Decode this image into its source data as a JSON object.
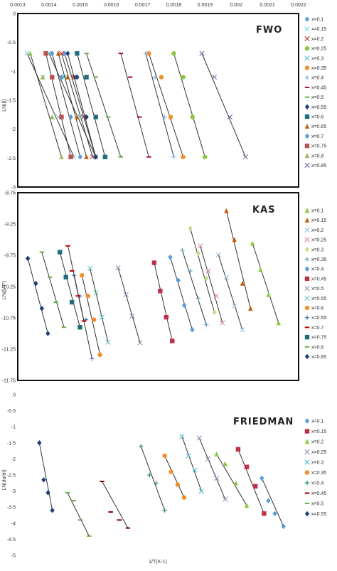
{
  "palette": {
    "0.1": "#5b9bd5",
    "0.15": "#c0392b",
    "0.2": "#8dc63f",
    "0.25": "#9b8bb4",
    "0.3": "#4bc0c8",
    "0.35": "#f28e2b",
    "0.4": "#7da7d9",
    "0.45": "#a50e30",
    "0.5": "#70ad47",
    "0.55": "#1f3f7a",
    "0.6": "#1f6d78",
    "0.65": "#c55a11",
    "0.7": "#5b9bd5",
    "0.75": "#c0504d",
    "0.8": "#9bbb59",
    "0.85": "#8064a2"
  },
  "chart_data": [
    {
      "type": "scatter",
      "title": "FWO",
      "ylabel": "LN(β)",
      "xlabel": "",
      "xlim": [
        0.0013,
        0.0022
      ],
      "ylim": [
        -3,
        0
      ],
      "x_ticks": [
        "0.0013",
        "0.0014",
        "0.0015",
        "0.0016",
        "0.0017",
        "0.0018",
        "0.0019",
        "0.002",
        "0.0021",
        "0.0022"
      ],
      "y_ticks": [
        "0",
        "-0.5",
        "-1",
        "-1.5",
        "-2",
        "-2.5",
        "-3"
      ],
      "x_ticks_position": "top",
      "grid": false,
      "legend": "right",
      "series": [
        {
          "name": "x=0.1",
          "marker": "diamond",
          "color": "#5b9bd5",
          "x": [
            0.00145,
            0.00148,
            0.00152,
            0.00155
          ],
          "y": [
            -0.69,
            -1.1,
            -1.79,
            -2.48
          ]
        },
        {
          "name": "x=0.15",
          "marker": "x",
          "color": "#7fd6d6",
          "x": [
            0.00133,
            0.00138,
            0.00143,
            0.00148
          ],
          "y": [
            -0.69,
            -1.1,
            -1.79,
            -2.48
          ]
        },
        {
          "name": "x=0.2",
          "marker": "x",
          "color": "#c0392b",
          "x": [
            0.00144,
            0.00148,
            0.00151,
            0.00154
          ],
          "y": [
            -0.69,
            -1.1,
            -1.79,
            -2.48
          ]
        },
        {
          "name": "x=0.25",
          "marker": "circle",
          "color": "#8dc63f",
          "x": [
            0.0018,
            0.00183,
            0.00186,
            0.0019
          ],
          "y": [
            -0.69,
            -1.1,
            -1.79,
            -2.48
          ]
        },
        {
          "name": "x=0.3",
          "marker": "x",
          "color": "#4bc0c8",
          "x": [
            0.0014,
            0.00145,
            0.0015,
            0.00155
          ],
          "y": [
            -0.69,
            -1.1,
            -1.79,
            -2.48
          ]
        },
        {
          "name": "x=0.35",
          "marker": "circle",
          "color": "#f28e2b",
          "x": [
            0.00172,
            0.00176,
            0.00179,
            0.00183
          ],
          "y": [
            -0.69,
            -1.1,
            -1.79,
            -2.48
          ]
        },
        {
          "name": "x=0.4",
          "marker": "plus",
          "color": "#7da7d9",
          "x": [
            0.00171,
            0.00174,
            0.00177,
            0.0018
          ],
          "y": [
            -0.69,
            -1.1,
            -1.79,
            -2.48
          ]
        },
        {
          "name": "x=0.45",
          "marker": "dash",
          "color": "#a50e30",
          "x": [
            0.00163,
            0.00166,
            0.00169,
            0.00172
          ],
          "y": [
            -0.69,
            -1.1,
            -1.79,
            -2.48
          ]
        },
        {
          "name": "x=0.5",
          "marker": "dash",
          "color": "#70ad47",
          "x": [
            0.00152,
            0.00155,
            0.00159,
            0.00163
          ],
          "y": [
            -0.69,
            -1.1,
            -1.79,
            -2.48
          ]
        },
        {
          "name": "x=0.55",
          "marker": "diamond",
          "color": "#1f3f7a",
          "x": [
            0.00146,
            0.00149,
            0.00152,
            0.00155
          ],
          "y": [
            -0.69,
            -1.1,
            -1.79,
            -2.48
          ]
        },
        {
          "name": "x=0.6",
          "marker": "square",
          "color": "#1f6d78",
          "x": [
            0.00149,
            0.00152,
            0.00155,
            0.00158
          ],
          "y": [
            -0.69,
            -1.1,
            -1.79,
            -2.48
          ]
        },
        {
          "name": "x=0.65",
          "marker": "triangle",
          "color": "#c55a11",
          "x": [
            0.00143,
            0.00146,
            0.00149,
            0.00152
          ],
          "y": [
            -0.69,
            -1.1,
            -1.79,
            -2.48
          ]
        },
        {
          "name": "x=0.7",
          "marker": "diamond",
          "color": "#5b9bd5",
          "x": [
            0.00141,
            0.00144,
            0.00147,
            0.0015
          ],
          "y": [
            -0.69,
            -1.1,
            -1.79,
            -2.48
          ]
        },
        {
          "name": "x=0.75",
          "marker": "square",
          "color": "#c0504d",
          "x": [
            0.00139,
            0.00141,
            0.00144,
            0.00147
          ],
          "y": [
            -0.69,
            -1.1,
            -1.79,
            -2.48
          ]
        },
        {
          "name": "x=0.8",
          "marker": "triangle",
          "color": "#9bbb59",
          "x": [
            0.00134,
            0.00138,
            0.00141,
            0.00144
          ],
          "y": [
            -0.69,
            -1.1,
            -1.79,
            -2.48
          ]
        },
        {
          "name": "x=0.85",
          "marker": "x",
          "color": "#8064a2",
          "x": [
            0.00189,
            0.00193,
            0.00198,
            0.00203
          ],
          "y": [
            -0.69,
            -1.1,
            -1.79,
            -2.48
          ]
        }
      ]
    },
    {
      "type": "scatter",
      "title": "KAS",
      "ylabel": "LN(β/T²)",
      "xlabel": "",
      "ylim": [
        -11.75,
        -8.75
      ],
      "y_ticks": [
        "-8.75",
        "-9.25",
        "-9.75",
        "-10.25",
        "-10.75",
        "-11.25",
        "-11.75"
      ],
      "grid": false,
      "legend": "right",
      "series": [
        {
          "name": "x=0.1",
          "marker": "triangle",
          "color": "#8dc63f",
          "x": [
            0.00192,
            0.00196,
            0.002,
            0.00205
          ],
          "y": [
            -9.56,
            -9.98,
            -10.38,
            -10.83
          ]
        },
        {
          "name": "x=0.15",
          "marker": "triangle",
          "color": "#c55a11",
          "x": [
            0.00179,
            0.00183,
            0.00187,
            0.00191
          ],
          "y": [
            -9.04,
            -9.5,
            -10.2,
            -10.6
          ]
        },
        {
          "name": "x=0.2",
          "marker": "x",
          "color": "#9bbdd8",
          "x": [
            0.00175,
            0.00179,
            0.00183,
            0.00187
          ],
          "y": [
            -9.74,
            -10.1,
            -10.56,
            -10.94
          ]
        },
        {
          "name": "x=0.25",
          "marker": "x",
          "color": "#d487b4",
          "x": [
            0.00166,
            0.0017,
            0.00174,
            0.00177
          ],
          "y": [
            -9.6,
            -10.0,
            -10.4,
            -10.83
          ]
        },
        {
          "name": "x=0.3",
          "marker": "diamond",
          "color": "#c5df8d",
          "x": [
            0.00161,
            0.00165,
            0.00169,
            0.00173
          ],
          "y": [
            -9.32,
            -9.72,
            -10.12,
            -10.66
          ]
        },
        {
          "name": "x=0.35",
          "marker": "plus",
          "color": "#6fa0b8",
          "x": [
            0.00157,
            0.00161,
            0.00165,
            0.00169
          ],
          "y": [
            -9.67,
            -10.0,
            -10.44,
            -10.86
          ]
        },
        {
          "name": "x=0.4",
          "marker": "diamond",
          "color": "#5b9bd5",
          "x": [
            0.00151,
            0.00155,
            0.00158,
            0.00162
          ],
          "y": [
            -9.78,
            -10.15,
            -10.55,
            -10.94
          ]
        },
        {
          "name": "x=0.45",
          "marker": "square",
          "color": "#c0304d",
          "x": [
            0.00143,
            0.00146,
            0.00149,
            0.00152
          ],
          "y": [
            -9.87,
            -10.32,
            -10.74,
            -11.12
          ]
        },
        {
          "name": "x=0.5",
          "marker": "x",
          "color": "#9b8bb4",
          "x": [
            0.00125,
            0.00129,
            0.00132,
            0.00136
          ],
          "y": [
            -9.95,
            -10.38,
            -10.72,
            -11.15
          ]
        },
        {
          "name": "x=0.55",
          "marker": "x",
          "color": "#66c2c8",
          "x": [
            0.00111,
            0.00114,
            0.00117,
            0.0012
          ],
          "y": [
            -9.96,
            -10.35,
            -10.74,
            -11.14
          ]
        },
        {
          "name": "x=0.6",
          "marker": "circle",
          "color": "#f28e2b",
          "x": [
            0.00107,
            0.0011,
            0.00113,
            0.00116
          ],
          "y": [
            -10.07,
            -10.4,
            -10.78,
            -11.34
          ]
        },
        {
          "name": "x=0.65",
          "marker": "plus",
          "color": "#4e6fa6",
          "x": [
            0.00103,
            0.00106,
            0.00109,
            0.00112
          ],
          "y": [
            -10.07,
            -10.4,
            -10.78,
            -11.4
          ]
        },
        {
          "name": "x=0.7",
          "marker": "dash",
          "color": "#c00000",
          "x": [
            0.001,
            0.00102,
            0.00105,
            0.00108
          ],
          "y": [
            -9.6,
            -10.0,
            -10.4,
            -10.8
          ]
        },
        {
          "name": "x=0.75",
          "marker": "square",
          "color": "#1f6d78",
          "x": [
            0.00096,
            0.00099,
            0.00102,
            0.00106
          ],
          "y": [
            -9.7,
            -10.1,
            -10.5,
            -10.9
          ]
        },
        {
          "name": "x=0.8",
          "marker": "dash",
          "color": "#70ad47",
          "x": [
            0.00087,
            0.00091,
            0.00094,
            0.00098
          ],
          "y": [
            -9.7,
            -10.1,
            -10.5,
            -10.9
          ]
        },
        {
          "name": "x=0.85",
          "marker": "diamond",
          "color": "#1f3f7a",
          "x": [
            0.0008,
            0.00084,
            0.00087,
            0.0009
          ],
          "y": [
            -9.8,
            -10.2,
            -10.6,
            -11.0
          ]
        }
      ]
    },
    {
      "type": "scatter",
      "title": "FRIEDMAN",
      "ylabel": "LN(dα/dt)",
      "xlabel": "1/T(K-1)",
      "ylim": [
        -5,
        0
      ],
      "y_ticks": [
        "0",
        "-0.5",
        "-1",
        "-1.5",
        "-2",
        "-2.5",
        "-3",
        "-3.5",
        "-4",
        "-4.5",
        "-5"
      ],
      "grid": false,
      "legend": "right",
      "series": [
        {
          "name": "x=0.1",
          "marker": "diamond",
          "color": "#5b9bd5",
          "x": [
            0.00198,
            0.00201,
            0.00204,
            0.00208
          ],
          "y": [
            -2.6,
            -3.3,
            -3.7,
            -4.1
          ]
        },
        {
          "name": "x=0.15",
          "marker": "square",
          "color": "#c0304d",
          "x": [
            0.00187,
            0.00191,
            0.00195,
            0.00199
          ],
          "y": [
            -1.7,
            -2.25,
            -2.85,
            -3.7
          ]
        },
        {
          "name": "x=0.2",
          "marker": "triangle",
          "color": "#8dc63f",
          "x": [
            0.00177,
            0.00181,
            0.00186,
            0.00191
          ],
          "y": [
            -1.85,
            -2.15,
            -2.75,
            -3.45
          ]
        },
        {
          "name": "x=0.25",
          "marker": "x",
          "color": "#9b8bb4",
          "x": [
            0.00169,
            0.00173,
            0.00177,
            0.00181
          ],
          "y": [
            -1.35,
            -2.0,
            -2.6,
            -3.25
          ]
        },
        {
          "name": "x=0.3",
          "marker": "x",
          "color": "#4bc0c8",
          "x": [
            0.00161,
            0.00164,
            0.00167,
            0.0017
          ],
          "y": [
            -1.3,
            -1.9,
            -2.35,
            -3.0
          ]
        },
        {
          "name": "x=0.35",
          "marker": "circle",
          "color": "#f28e2b",
          "x": [
            0.00153,
            0.00156,
            0.00159,
            0.00162
          ],
          "y": [
            -1.9,
            -2.4,
            -2.8,
            -3.2
          ]
        },
        {
          "name": "x=0.4",
          "marker": "plus",
          "color": "#2e8b7a",
          "x": [
            0.00142,
            0.00146,
            0.00149,
            0.00153
          ],
          "y": [
            -1.6,
            -2.5,
            -2.75,
            -3.6
          ]
        },
        {
          "name": "x=0.45",
          "marker": "dash",
          "color": "#7f0000",
          "x": [
            0.00124,
            0.00128,
            0.00132,
            0.00136
          ],
          "y": [
            -2.7,
            -3.65,
            -3.9,
            -4.15
          ]
        },
        {
          "name": "x=0.5",
          "marker": "dash",
          "color": "#70ad47",
          "x": [
            0.00108,
            0.00111,
            0.00114,
            0.00118
          ],
          "y": [
            -3.05,
            -3.3,
            -3.9,
            -4.4
          ]
        },
        {
          "name": "x=0.55",
          "marker": "diamond",
          "color": "#1f3f7a",
          "x": [
            0.00095,
            0.00097,
            0.00099,
            0.00101
          ],
          "y": [
            -1.5,
            -2.65,
            -3.05,
            -3.6
          ]
        }
      ]
    }
  ]
}
